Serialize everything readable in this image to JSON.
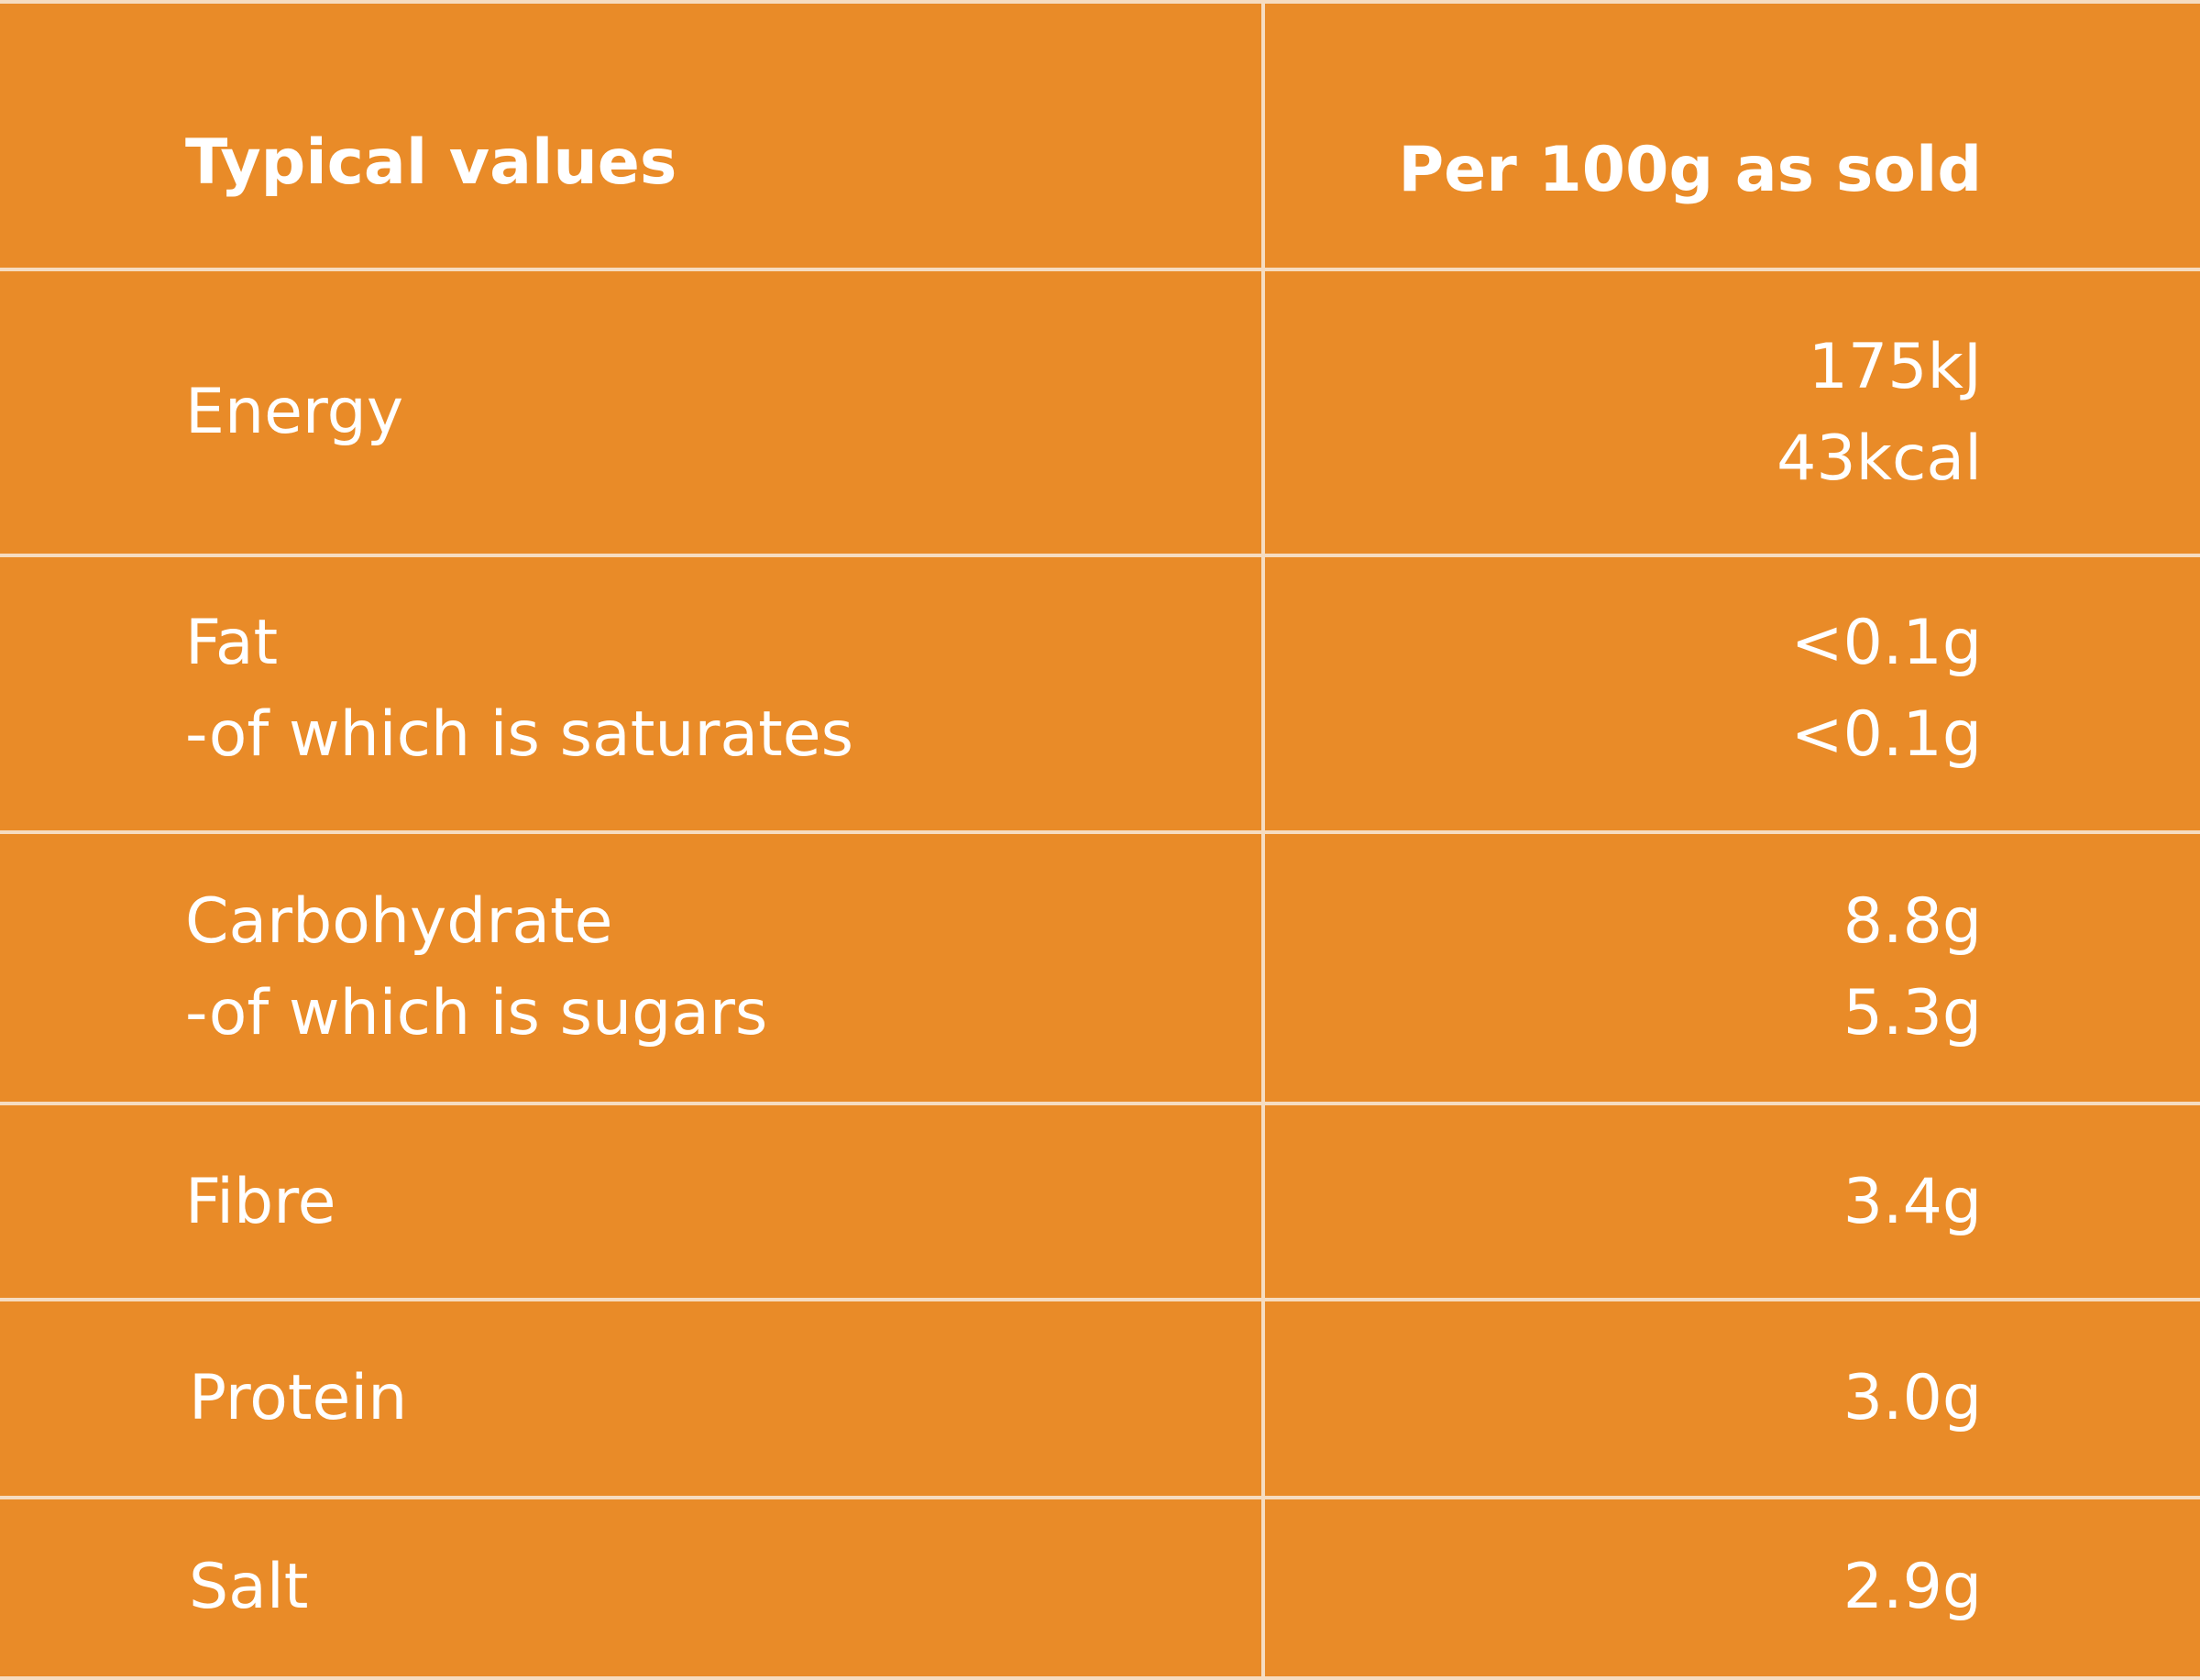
{
  "colors": {
    "background": "#E98B28",
    "rule": "#F6DCC0",
    "text": "#FFFFFF"
  },
  "header": {
    "label": "Typical values",
    "value": "Per 100g as sold"
  },
  "rows": [
    {
      "label": "Energy",
      "value": "175kJ\n43kcal"
    },
    {
      "label": "Fat\n-of which is saturates",
      "value": "<0.1g\n<0.1g"
    },
    {
      "label": "Carbohydrate\n-of which is sugars",
      "value": "8.8g\n5.3g"
    },
    {
      "label": "Fibre",
      "value": "3.4g"
    },
    {
      "label": "Protein",
      "value": "3.0g"
    },
    {
      "label": "Salt",
      "value": "2.9g"
    }
  ]
}
